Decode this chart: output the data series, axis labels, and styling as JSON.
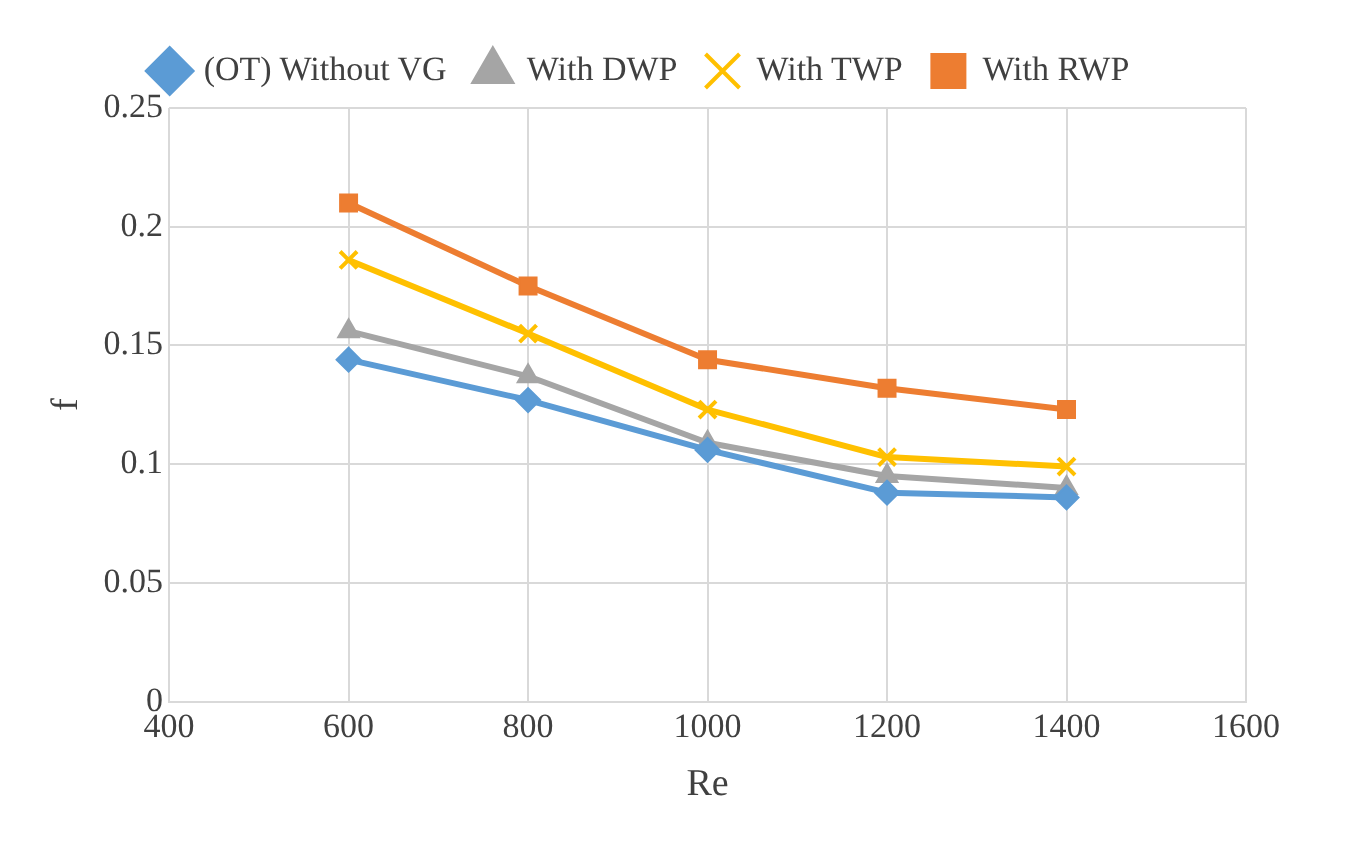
{
  "chart_data": {
    "type": "line",
    "xlabel": "Re",
    "ylabel": "f",
    "x": [
      600,
      800,
      1000,
      1200,
      1400
    ],
    "xlim": [
      400,
      1600
    ],
    "xticks": [
      400,
      600,
      800,
      1000,
      1200,
      1400,
      1600
    ],
    "ylim": [
      0,
      0.25
    ],
    "yticks": [
      0,
      0.05,
      0.1,
      0.15,
      0.2,
      0.25
    ],
    "grid": true,
    "legend": "top",
    "series": [
      {
        "name": "With RWP",
        "color": "#ed7d31",
        "marker": "square",
        "values": [
          0.21,
          0.175,
          0.144,
          0.132,
          0.123
        ]
      },
      {
        "name": "With TWP",
        "color": "#ffc000",
        "marker": "cross",
        "values": [
          0.186,
          0.155,
          0.123,
          0.103,
          0.099
        ]
      },
      {
        "name": "With DWP",
        "color": "#a5a5a5",
        "marker": "triangle",
        "values": [
          0.156,
          0.137,
          0.109,
          0.095,
          0.09
        ]
      },
      {
        "name": "(OT) Without VG",
        "color": "#5b9bd5",
        "marker": "diamond",
        "values": [
          0.144,
          0.127,
          0.106,
          0.088,
          0.086
        ]
      }
    ]
  }
}
